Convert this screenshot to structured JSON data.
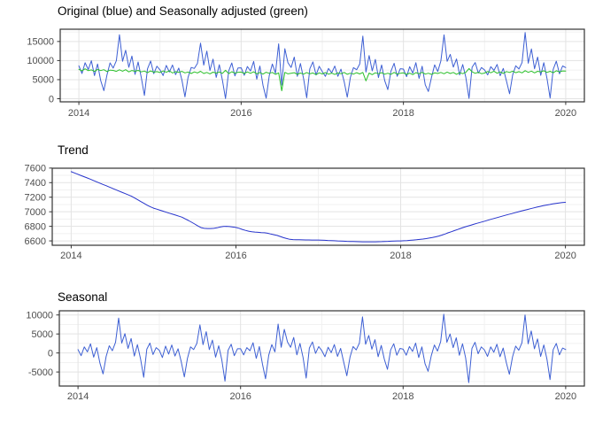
{
  "colors": {
    "panel_background": "#ffffff",
    "panel_border": "#333333",
    "grid_major": "#e3e3e3",
    "grid_minor": "#f1f1f1",
    "tick_mark": "#333333",
    "tick_label": "#4d4d4d",
    "title_text": "#000000",
    "original_blue": "#3d5fd3",
    "adjusted_green": "#2abf2a",
    "trend_blue": "#2633cc"
  },
  "chart_data": [
    {
      "type": "line",
      "title": "Original (blue) and Seasonally adjusted (green)",
      "x_start": 2014,
      "x_step": 0.0384615,
      "xlim": [
        2013.77,
        2020.23
      ],
      "ylim": [
        -815,
        18215
      ],
      "x_ticks": [
        2014,
        2016,
        2018,
        2020
      ],
      "x_minor_ticks": [
        2015,
        2017,
        2019
      ],
      "y_ticks": [
        0,
        5000,
        10000,
        15000
      ],
      "y_minor_ticks": [
        2500,
        7500,
        12500,
        17500
      ],
      "legend_position": "none",
      "grid": true,
      "series": [
        {
          "name": "Original",
          "color": "#3d5fd3",
          "values": [
            8600,
            6610,
            9430,
            7660,
            9960,
            6050,
            9090,
            4770,
            2100,
            6220,
            9400,
            8020,
            9960,
            16780,
            9810,
            12720,
            8230,
            11190,
            6390,
            9630,
            5530,
            860,
            7830,
            9890,
            6570,
            8510,
            7570,
            6080,
            8730,
            7010,
            8850,
            6310,
            8020,
            4960,
            480,
            5610,
            8200,
            7940,
            9250,
            14580,
            8810,
            12480,
            7410,
            10360,
            5600,
            8900,
            4840,
            50,
            7270,
            9380,
            5980,
            8040,
            8090,
            6120,
            8440,
            7250,
            9760,
            5120,
            8560,
            3540,
            130,
            6050,
            9090,
            6680,
            14380,
            3580,
            13110,
            9420,
            8190,
            10910,
            5880,
            9230,
            5250,
            260,
            7830,
            9650,
            6210,
            8480,
            7090,
            5870,
            7930,
            6800,
            8550,
            5870,
            7740,
            4500,
            400,
            5570,
            8150,
            7610,
            9100,
            16400,
            6990,
            11320,
            7310,
            10290,
            5540,
            8830,
            4730,
            2390,
            7170,
            9280,
            5870,
            7860,
            7770,
            5770,
            8400,
            6700,
            9450,
            5340,
            8520,
            3640,
            1890,
            5670,
            8880,
            7120,
            9880,
            16740,
            9780,
            11620,
            8290,
            10410,
            6230,
            8960,
            5610,
            100,
            8260,
            9460,
            6730,
            8170,
            7530,
            6250,
            8400,
            7420,
            8980,
            6040,
            7940,
            4630,
            1300,
            6220,
            8620,
            7790,
            9470,
            17350,
            9310,
            13040,
            7870,
            10900,
            6120,
            9440,
            5300,
            180,
            7700,
            9840,
            6520,
            8580,
            8170
          ]
        },
        {
          "name": "Seasonally adjusted",
          "color": "#2abf2a",
          "values": [
            7700,
            7310,
            7830,
            7360,
            7560,
            7150,
            7690,
            7370,
            7600,
            7120,
            7500,
            7420,
            7160,
            7580,
            7210,
            7620,
            7030,
            7390,
            7190,
            7430,
            7030,
            7260,
            6830,
            7290,
            6970,
            7110,
            6870,
            7280,
            6930,
            7310,
            6750,
            7110,
            6920,
            7160,
            6780,
            7010,
            6600,
            7040,
            6750,
            7180,
            6610,
            6880,
            6510,
            6960,
            6700,
            7000,
            6640,
            7450,
            6570,
            7080,
            6680,
            6940,
            6990,
            6620,
            7040,
            6650,
            7060,
            6520,
            6860,
            6440,
            6930,
            6650,
            6890,
            6380,
            6780,
            2080,
            6910,
            6520,
            6690,
            6810,
            6380,
            6730,
            6450,
            6860,
            6530,
            6750,
            6310,
            6780,
            6490,
            6870,
            6430,
            6700,
            6350,
            6770,
            6540,
            6900,
            6400,
            6670,
            6450,
            6810,
            6500,
            6900,
            4690,
            6720,
            6310,
            6790,
            6540,
            6830,
            6430,
            6690,
            6370,
            6880,
            6470,
            6660,
            6770,
            6370,
            6700,
            6300,
            6850,
            6540,
            6920,
            6440,
            6690,
            6370,
            6780,
            6620,
            6880,
            6540,
            6980,
            6620,
            6890,
            6410,
            6830,
            6560,
            6910,
            7900,
            7060,
            6660,
            6930,
            6570,
            6730,
            7150,
            6800,
            7220,
            6680,
            7040,
            6640,
            7130,
            6900,
            7220,
            6820,
            7090,
            6770,
            7350,
            6910,
            7240,
            6770,
            7200,
            7020,
            7340,
            6900,
            7180,
            6800,
            7340,
            7020,
            7280,
            7270
          ]
        }
      ]
    },
    {
      "type": "line",
      "title": "Trend",
      "x_start": 2014,
      "x_step": 0.0384615,
      "xlim": [
        2013.77,
        2020.23
      ],
      "ylim": [
        6540,
        7598
      ],
      "x_ticks": [
        2014,
        2016,
        2018,
        2020
      ],
      "x_minor_ticks": [
        2015,
        2017,
        2019
      ],
      "y_ticks": [
        6600,
        6800,
        7000,
        7200,
        7400,
        7600
      ],
      "y_minor_ticks": [
        6700,
        6900,
        7100,
        7300,
        7500
      ],
      "legend_position": "none",
      "grid": true,
      "series": [
        {
          "name": "Trend",
          "color": "#2633cc",
          "values": [
            7550,
            7533,
            7516,
            7499,
            7482,
            7465,
            7448,
            7430,
            7412,
            7394,
            7376,
            7358,
            7340,
            7322,
            7304,
            7286,
            7268,
            7250,
            7232,
            7214,
            7190,
            7165,
            7140,
            7115,
            7090,
            7068,
            7050,
            7036,
            7022,
            7008,
            6994,
            6980,
            6967,
            6953,
            6939,
            6925,
            6903,
            6880,
            6856,
            6832,
            6805,
            6782,
            6772,
            6770,
            6770,
            6772,
            6780,
            6790,
            6798,
            6800,
            6797,
            6791,
            6785,
            6773,
            6758,
            6744,
            6733,
            6726,
            6721,
            6717,
            6714,
            6712,
            6705,
            6695,
            6685,
            6675,
            6660,
            6645,
            6632,
            6622,
            6618,
            6616,
            6615,
            6614,
            6613,
            6613,
            6612,
            6612,
            6612,
            6610,
            6608,
            6606,
            6604,
            6602,
            6600,
            6598,
            6596,
            6594,
            6592,
            6591,
            6590,
            6589,
            6588,
            6588,
            6588,
            6588,
            6588,
            6589,
            6590,
            6592,
            6594,
            6596,
            6598,
            6599,
            6600,
            6602,
            6605,
            6608,
            6612,
            6616,
            6620,
            6625,
            6631,
            6638,
            6646,
            6655,
            6666,
            6680,
            6695,
            6711,
            6726,
            6742,
            6757,
            6772,
            6788,
            6801,
            6814,
            6827,
            6840,
            6853,
            6865,
            6877,
            6890,
            6902,
            6914,
            6927,
            6939,
            6951,
            6963,
            6974,
            6986,
            6997,
            7009,
            7020,
            7031,
            7042,
            7053,
            7064,
            7074,
            7083,
            7092,
            7100,
            7108,
            7115,
            7121,
            7126,
            7130
          ]
        }
      ]
    },
    {
      "type": "line",
      "title": "Seasonal",
      "x_start": 2014,
      "x_step": 0.0384615,
      "xlim": [
        2013.77,
        2020.23
      ],
      "ylim": [
        -8700,
        11100
      ],
      "x_ticks": [
        2014,
        2016,
        2018,
        2020
      ],
      "x_minor_ticks": [
        2015,
        2017,
        2019
      ],
      "y_ticks": [
        -5000,
        0,
        5000,
        10000
      ],
      "y_minor_ticks": [
        -7500,
        -2500,
        2500,
        7500
      ],
      "legend_position": "none",
      "grid": true,
      "series": [
        {
          "name": "Seasonal",
          "color": "#3d5fd3",
          "values": [
            900,
            -700,
            1600,
            300,
            2400,
            -1100,
            1400,
            -2600,
            -5500,
            -900,
            1900,
            600,
            2800,
            9200,
            2600,
            5100,
            1200,
            3800,
            -800,
            2200,
            -1500,
            -6400,
            1000,
            2600,
            -400,
            1400,
            700,
            -1200,
            1800,
            -300,
            2100,
            -800,
            1100,
            -2200,
            -6300,
            -1400,
            1600,
            900,
            2500,
            7400,
            2200,
            5600,
            900,
            3400,
            -1100,
            1900,
            -1800,
            -7400,
            700,
            2300,
            -700,
            1100,
            1100,
            -500,
            1400,
            600,
            2700,
            -1400,
            1700,
            -2900,
            -6800,
            -600,
            2200,
            300,
            7600,
            1500,
            6200,
            2900,
            1500,
            4100,
            -500,
            2500,
            -1200,
            -6600,
            1300,
            2900,
            -100,
            1700,
            600,
            -1000,
            1500,
            100,
            2200,
            -900,
            1200,
            -2400,
            -6000,
            -1100,
            1700,
            800,
            2600,
            9500,
            2300,
            4600,
            1000,
            3500,
            -1000,
            2000,
            -1700,
            -4300,
            800,
            2400,
            -600,
            1200,
            1000,
            -600,
            1700,
            400,
            2600,
            -1200,
            1600,
            -2800,
            -4800,
            -700,
            2100,
            500,
            3000,
            10200,
            2800,
            5000,
            1400,
            4000,
            -600,
            2400,
            -1300,
            -7800,
            1200,
            2800,
            -200,
            1600,
            800,
            -900,
            1600,
            200,
            2300,
            -1000,
            1300,
            -2500,
            -5600,
            -1000,
            1800,
            700,
            2700,
            10000,
            2400,
            5800,
            1100,
            3700,
            -900,
            2100,
            -1600,
            -7000,
            900,
            2500,
            -500,
            1300,
            900
          ]
        }
      ]
    }
  ]
}
